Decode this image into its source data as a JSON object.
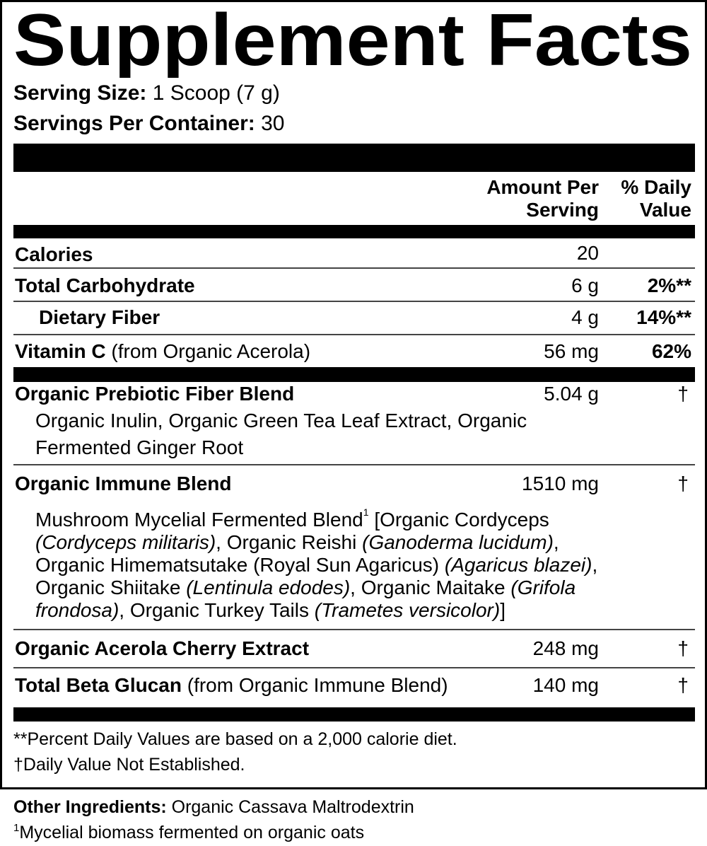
{
  "title": "Supplement Facts",
  "serving": {
    "size_label": "Serving Size:",
    "size_value": " 1 Scoop (7 g)",
    "per_container_label": "Servings Per Container:",
    "per_container_value": " 30"
  },
  "headers": {
    "amount_line1": "Amount Per",
    "amount_line2": "Serving",
    "dv_line1": "% Daily",
    "dv_line2": "Value"
  },
  "rows": [
    {
      "name": "Calories",
      "amount": "20",
      "dv": ""
    },
    {
      "name": "Total Carbohydrate",
      "amount": "6 g",
      "dv": "2%**"
    },
    {
      "name": "Dietary Fiber",
      "amount": "4 g",
      "dv": "14%**"
    },
    {
      "name": "Vitamin C",
      "note": " (from Organic Acerola)",
      "amount": "56 mg",
      "dv": "62%"
    },
    {
      "name": "Organic Prebiotic Fiber Blend",
      "amount": "5.04 g",
      "dv": "†",
      "detail": [
        "Organic Inulin, Organic Green Tea Leaf Extract, Organic",
        "Fermented Ginger Root"
      ]
    },
    {
      "name": "Organic Immune Blend",
      "amount": "1510 mg",
      "dv": "†",
      "detail": [
        [
          {
            "text": "Mushroom Mycelial Fermented Blend"
          },
          {
            "text": "1",
            "sup": true
          },
          {
            "text": " [Organic Cordyceps"
          }
        ],
        [
          {
            "text": "(Cordyceps militaris)",
            "italic": true
          },
          {
            "text": ", Organic Reishi "
          },
          {
            "text": "(Ganoderma lucidum)",
            "italic": true
          },
          {
            "text": ","
          }
        ],
        [
          {
            "text": "Organic Himematsutake (Royal Sun Agaricus) "
          },
          {
            "text": "(Agaricus blazei)",
            "italic": true
          },
          {
            "text": ","
          }
        ],
        [
          {
            "text": "Organic Shiitake "
          },
          {
            "text": "(Lentinula edodes)",
            "italic": true
          },
          {
            "text": ", Organic Maitake "
          },
          {
            "text": "(Grifola",
            "italic": true
          }
        ],
        [
          {
            "text": "frondosa)",
            "italic": true
          },
          {
            "text": ", Organic Turkey Tails "
          },
          {
            "text": "(Trametes versicolor)",
            "italic": true
          },
          {
            "text": "]"
          }
        ]
      ]
    },
    {
      "name": "Organic Acerola Cherry Extract",
      "amount": "248 mg",
      "dv": "†"
    },
    {
      "name": "Total Beta Glucan",
      "note": " (from Organic Immune Blend)",
      "amount": "140 mg",
      "dv": "†"
    }
  ],
  "footnotes": [
    "**Percent Daily Values are based on a 2,000 calorie diet.",
    "†Daily Value Not Established."
  ],
  "other": {
    "label": "Other Ingredients:",
    "value": " Organic Cassava Maltrodextrin"
  },
  "footnote1": {
    "mark": "1",
    "text": "Mycelial biomass fermented on organic oats"
  }
}
